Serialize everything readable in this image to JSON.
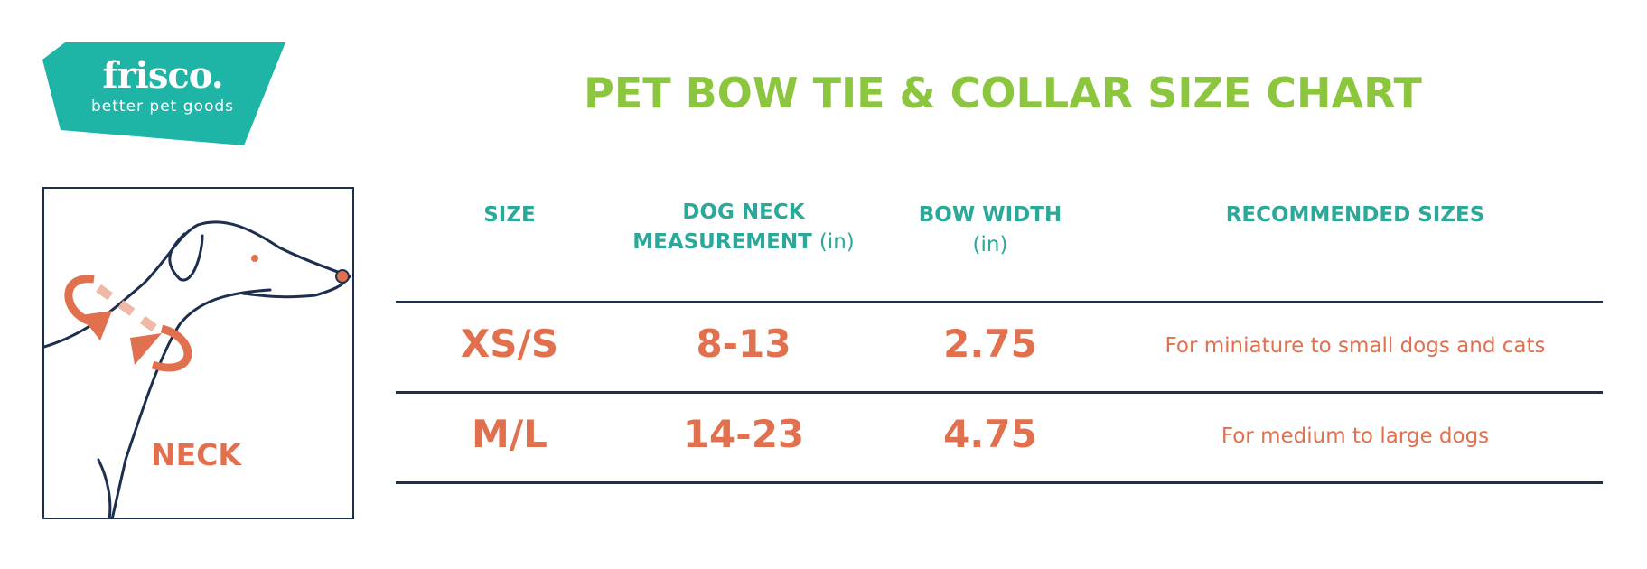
{
  "brand": {
    "name": "frisco.",
    "tagline": "better pet goods",
    "color": "#1fb5a6"
  },
  "title": "PET BOW TIE & COLLAR SIZE CHART",
  "illustration": {
    "label": "NECK",
    "icon": "dog-neck-measurement-icon"
  },
  "table": {
    "headers": [
      {
        "line1": "SIZE",
        "line2": "",
        "unit": ""
      },
      {
        "line1": "DOG NECK",
        "line2": "MEASUREMENT",
        "unit": "(in)"
      },
      {
        "line1": "BOW WIDTH",
        "line2": "",
        "unit": "(in)"
      },
      {
        "line1": "RECOMMENDED SIZES",
        "line2": "",
        "unit": ""
      }
    ],
    "rows": [
      {
        "size": "XS/S",
        "neck": "8-13",
        "bow_width": "2.75",
        "recommended": "For miniature to small dogs and cats"
      },
      {
        "size": "M/L",
        "neck": "14-23",
        "bow_width": "4.75",
        "recommended": "For medium to large dogs"
      }
    ]
  },
  "colors": {
    "title": "#8cc63f",
    "header": "#2aa89a",
    "values": "#e1704e",
    "lines": "#1d2f4e"
  }
}
